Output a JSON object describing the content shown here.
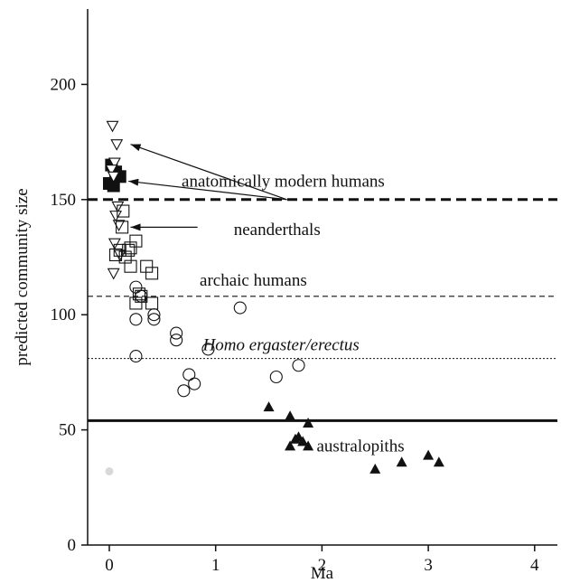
{
  "chart_data": {
    "type": "scatter",
    "xlabel": "Ma",
    "ylabel": "predicted community size",
    "xlim": [
      -0.2,
      4.25
    ],
    "ylim": [
      0,
      220
    ],
    "x_ticks": [
      0,
      1,
      2,
      3,
      4
    ],
    "y_ticks": [
      0,
      50,
      100,
      150,
      200
    ],
    "x_tick_labels": [
      "0",
      "1",
      "2",
      "3",
      "4"
    ],
    "y_tick_labels": [
      "0",
      "50",
      "100",
      "150",
      "200"
    ],
    "grid": false,
    "legend": "none",
    "series": [
      {
        "group": "anatomically modern humans",
        "marker": "filled-square",
        "points": [
          [
            0.02,
            165
          ],
          [
            0.06,
            162
          ],
          [
            0.1,
            160
          ],
          [
            0.0,
            157
          ],
          [
            0.04,
            156
          ]
        ]
      },
      {
        "group": "neanderthals",
        "marker": "open-triangle-down",
        "points": [
          [
            0.03,
            182
          ],
          [
            0.07,
            174
          ],
          [
            0.05,
            166
          ],
          [
            0.02,
            163
          ],
          [
            0.04,
            160
          ],
          [
            0.08,
            147
          ],
          [
            0.06,
            143
          ],
          [
            0.09,
            139
          ],
          [
            0.05,
            131
          ],
          [
            0.1,
            126
          ],
          [
            0.04,
            118
          ]
        ]
      },
      {
        "group": "archaic humans",
        "marker": "open-square",
        "points": [
          [
            0.13,
            145
          ],
          [
            0.12,
            138
          ],
          [
            0.25,
            132
          ],
          [
            0.1,
            128
          ],
          [
            0.18,
            128
          ],
          [
            0.2,
            129
          ],
          [
            0.06,
            126
          ],
          [
            0.15,
            125
          ],
          [
            0.2,
            121
          ],
          [
            0.35,
            121
          ],
          [
            0.4,
            118
          ],
          [
            0.28,
            109
          ],
          [
            0.3,
            108
          ],
          [
            0.25,
            105
          ],
          [
            0.4,
            105
          ]
        ]
      },
      {
        "group": "Homo ergaster/erectus",
        "marker": "open-circle",
        "points": [
          [
            0.25,
            112
          ],
          [
            0.3,
            108
          ],
          [
            1.23,
            103
          ],
          [
            0.42,
            100
          ],
          [
            0.42,
            98
          ],
          [
            0.25,
            98
          ],
          [
            0.63,
            92
          ],
          [
            0.63,
            89
          ],
          [
            0.93,
            85
          ],
          [
            0.25,
            82
          ],
          [
            0.75,
            74
          ],
          [
            1.57,
            73
          ],
          [
            1.78,
            78
          ],
          [
            0.8,
            70
          ],
          [
            0.7,
            67
          ]
        ]
      },
      {
        "group": "australopiths",
        "marker": "filled-triangle-up",
        "points": [
          [
            1.5,
            60
          ],
          [
            1.7,
            56
          ],
          [
            1.87,
            53
          ],
          [
            1.78,
            47
          ],
          [
            1.75,
            46
          ],
          [
            1.82,
            45
          ],
          [
            1.7,
            43
          ],
          [
            1.87,
            43
          ],
          [
            2.5,
            33
          ],
          [
            2.75,
            36
          ],
          [
            3.0,
            39
          ],
          [
            3.1,
            36
          ]
        ]
      },
      {
        "group": "outlier",
        "marker": "light-grey-dot",
        "points": [
          [
            0.0,
            32
          ]
        ]
      }
    ],
    "reference_lines": [
      {
        "y": 150,
        "style": "thick-dashed"
      },
      {
        "y": 108,
        "style": "dashed"
      },
      {
        "y": 81,
        "style": "dotted"
      },
      {
        "y": 54,
        "style": "solid-thick"
      }
    ],
    "annotations": [
      {
        "text": "anatomically modern humans",
        "italic": false,
        "x": 0.68,
        "y": 158
      },
      {
        "text": "neanderthals",
        "italic": false,
        "x": 1.17,
        "y": 137
      },
      {
        "text": "archaic humans",
        "italic": false,
        "x": 0.85,
        "y": 115
      },
      {
        "text": "Homo ergaster/erectus",
        "italic": true,
        "x": 0.88,
        "y": 87
      },
      {
        "text": "australopiths",
        "italic": false,
        "x": 1.95,
        "y": 43
      }
    ],
    "arrows": [
      {
        "from": [
          1.67,
          150
        ],
        "to": [
          0.2,
          174
        ]
      },
      {
        "from": [
          1.67,
          150
        ],
        "to": [
          0.18,
          158
        ]
      },
      {
        "from": [
          0.83,
          138
        ],
        "to": [
          0.2,
          138
        ]
      }
    ],
    "colors": {
      "marker": "#111111",
      "outlier": "#d9d9d9",
      "line": "#111111"
    }
  }
}
